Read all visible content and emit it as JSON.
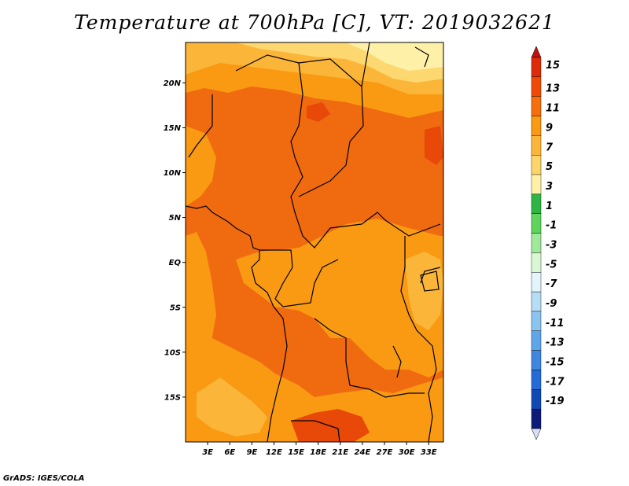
{
  "title": "Temperature at 700hPa [C], VT: 2019032621",
  "credit": "GrADS: IGES/COLA",
  "map": {
    "lat_ticks": [
      "20N",
      "15N",
      "10N",
      "5N",
      "EQ",
      "5S",
      "10S",
      "15S"
    ],
    "lat_values": [
      20,
      15,
      10,
      5,
      0,
      -5,
      -10,
      -15
    ],
    "lon_ticks": [
      "3E",
      "6E",
      "9E",
      "12E",
      "15E",
      "18E",
      "21E",
      "24E",
      "27E",
      "30E",
      "33E"
    ],
    "lon_values": [
      3,
      6,
      9,
      12,
      15,
      18,
      21,
      24,
      27,
      30,
      33
    ],
    "lat_range": [
      -20,
      24.5
    ],
    "lon_range": [
      0,
      35
    ]
  },
  "colorbar": {
    "labels": [
      "15",
      "13",
      "11",
      "9",
      "7",
      "5",
      "3",
      "1",
      "-1",
      "-3",
      "-5",
      "-7",
      "-9",
      "-11",
      "-13",
      "-15",
      "-17",
      "-19"
    ],
    "colors": [
      "#dc2a0a",
      "#f04a06",
      "#f66e0e",
      "#f99a12",
      "#fbb63a",
      "#fdd56a",
      "#fff2a8",
      "#2fb544",
      "#5ed45c",
      "#9fe99a",
      "#d9f7d3",
      "#e3f4fb",
      "#b7dcf6",
      "#8cc4f0",
      "#5ea6e9",
      "#3f86e0",
      "#246bd8",
      "#1048b4",
      "#0a1c78"
    ],
    "top_color": "#c01010",
    "bottom_color": "#dcdcf8"
  },
  "field_colors": {
    "c11_13": "#f06a10",
    "c9_11": "#f99a12",
    "c7_9": "#fbb63a",
    "c5_7": "#fdd870",
    "c3_5": "#fff0a8",
    "c13_15": "#e84808"
  }
}
